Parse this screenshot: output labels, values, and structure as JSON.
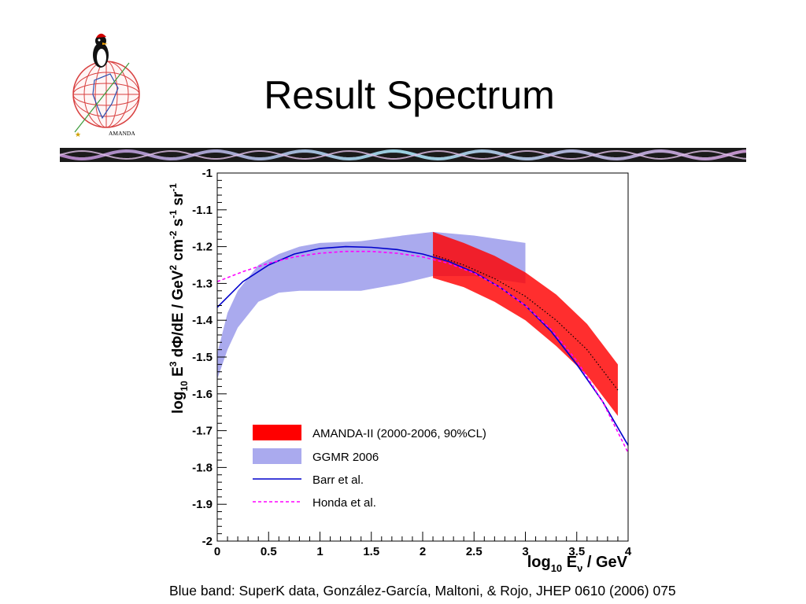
{
  "slide": {
    "title": "Result Spectrum",
    "caption": "Blue band: SuperK data, González-García, Maltoni, & Rojo, JHEP 0610 (2006) 075",
    "logo_text": "AMANDA",
    "logo_icon": "penguin-on-globe-icon",
    "banner_icon": "wavy-banner-icon"
  },
  "chart_data": {
    "type": "area",
    "xlabel": {
      "main": "log",
      "sub": "10",
      "rest": " E",
      "sub2": "ν",
      "tail": " / GeV"
    },
    "ylabel": {
      "p1": "log",
      "sub1": "10",
      "p2": " E",
      "sup1": "3",
      "p3": " dΦ/dE / GeV",
      "sup2": "2",
      "p4": " cm",
      "sup3": "-2",
      "p5": " s",
      "sup4": "-1",
      "p6": " sr",
      "sup5": "-1"
    },
    "xlim": [
      0,
      4
    ],
    "ylim": [
      -2,
      -1
    ],
    "xticks": [
      0,
      0.5,
      1,
      1.5,
      2,
      2.5,
      3,
      3.5,
      4
    ],
    "xtick_labels": [
      "0",
      "0.5",
      "1",
      "1.5",
      "2",
      "2.5",
      "3",
      "3.5",
      "4"
    ],
    "yticks": [
      -2,
      -1.9,
      -1.8,
      -1.7,
      -1.6,
      -1.5,
      -1.4,
      -1.3,
      -1.2,
      -1.1,
      -1
    ],
    "ytick_labels": [
      "-2",
      "-1.9",
      "-1.8",
      "-1.7",
      "-1.6",
      "-1.5",
      "-1.4",
      "-1.3",
      "-1.2",
      "-1.1",
      "-1"
    ],
    "legend_position": "bottom-center",
    "series": [
      {
        "name": "AMANDA-II (2000-2006, 90%CL)",
        "kind": "band",
        "color": "#ff0000",
        "x": [
          2.1,
          2.4,
          2.7,
          3.0,
          3.3,
          3.6,
          3.9
        ],
        "upper": [
          -1.16,
          -1.19,
          -1.225,
          -1.27,
          -1.33,
          -1.41,
          -1.52
        ],
        "lower": [
          -1.285,
          -1.31,
          -1.35,
          -1.4,
          -1.47,
          -1.55,
          -1.66
        ]
      },
      {
        "name": "GGMR 2006",
        "kind": "band",
        "color": "#aaaaee",
        "x": [
          0.0,
          0.1,
          0.2,
          0.4,
          0.6,
          0.8,
          1.0,
          1.4,
          1.8,
          2.1,
          2.5,
          3.0
        ],
        "upper": [
          -1.49,
          -1.38,
          -1.32,
          -1.25,
          -1.22,
          -1.2,
          -1.19,
          -1.185,
          -1.17,
          -1.16,
          -1.17,
          -1.19
        ],
        "lower": [
          -1.56,
          -1.48,
          -1.42,
          -1.35,
          -1.325,
          -1.32,
          -1.32,
          -1.32,
          -1.3,
          -1.28,
          -1.28,
          -1.3
        ]
      },
      {
        "name": "Barr et al.",
        "kind": "line",
        "color": "#0000cc",
        "x": [
          0.0,
          0.25,
          0.5,
          0.75,
          1.0,
          1.25,
          1.5,
          1.75,
          2.0,
          2.25,
          2.5,
          2.75,
          3.0,
          3.25,
          3.5,
          3.75,
          4.0
        ],
        "y": [
          -1.365,
          -1.295,
          -1.25,
          -1.22,
          -1.205,
          -1.2,
          -1.202,
          -1.208,
          -1.22,
          -1.24,
          -1.27,
          -1.31,
          -1.36,
          -1.43,
          -1.52,
          -1.62,
          -1.74
        ]
      },
      {
        "name": "Honda et al.",
        "kind": "dashed",
        "color": "#ff00ff",
        "x": [
          0.0,
          0.25,
          0.5,
          0.75,
          1.0,
          1.25,
          1.5,
          1.75,
          2.0,
          2.25,
          2.5,
          2.75,
          3.0,
          3.25,
          3.5,
          3.75,
          4.0
        ],
        "y": [
          -1.295,
          -1.268,
          -1.245,
          -1.228,
          -1.218,
          -1.213,
          -1.213,
          -1.218,
          -1.228,
          -1.245,
          -1.272,
          -1.31,
          -1.36,
          -1.425,
          -1.51,
          -1.62,
          -1.76
        ]
      },
      {
        "name": "",
        "kind": "dotted",
        "color": "#000000",
        "x": [
          2.1,
          2.4,
          2.7,
          3.0,
          3.3,
          3.6,
          3.9
        ],
        "y": [
          -1.222,
          -1.25,
          -1.287,
          -1.335,
          -1.4,
          -1.48,
          -1.59
        ]
      }
    ]
  }
}
